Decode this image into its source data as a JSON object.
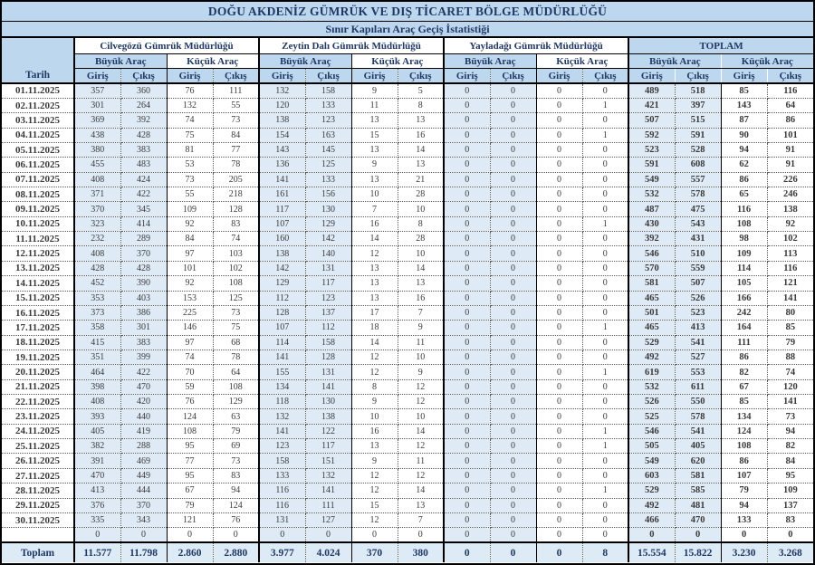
{
  "header": {
    "title": "DOĞU AKDENİZ GÜMRÜK VE DIŞ TİCARET BÖLGE MÜDÜRLÜĞÜ",
    "subtitle": "Sınır Kapıları Araç Geçiş İstatistiği"
  },
  "columns": {
    "date": "Tarih",
    "groups": [
      "Cilvegözü Gümrük Müdürlüğü",
      "Zeytin Dalı Gümrük Müdürlüğü",
      "Yayladağı Gümrük Müdürlüğü",
      "TOPLAM"
    ],
    "vehicle": [
      "Büyük Araç",
      "Küçük Araç"
    ],
    "direction": [
      "Giriş",
      "Çıkış"
    ]
  },
  "colors": {
    "header_bg": "#BDD7EE",
    "shade_bg": "#DEEAF6",
    "total_row_bg": "#DDEBF7",
    "navy_text": "#1F3864",
    "value_text": "#3a3a3a"
  },
  "rows": [
    {
      "date": "01.11.2025",
      "values": [
        357,
        360,
        76,
        111,
        132,
        158,
        9,
        5,
        0,
        0,
        0,
        0,
        489,
        518,
        85,
        116
      ]
    },
    {
      "date": "02.11.2025",
      "values": [
        301,
        264,
        132,
        55,
        120,
        133,
        11,
        8,
        0,
        0,
        0,
        1,
        421,
        397,
        143,
        64
      ]
    },
    {
      "date": "03.11.2025",
      "values": [
        369,
        392,
        74,
        73,
        138,
        123,
        13,
        13,
        0,
        0,
        0,
        0,
        507,
        515,
        87,
        86
      ]
    },
    {
      "date": "04.11.2025",
      "values": [
        438,
        428,
        75,
        84,
        154,
        163,
        15,
        16,
        0,
        0,
        0,
        1,
        592,
        591,
        90,
        101
      ]
    },
    {
      "date": "05.11.2025",
      "values": [
        380,
        383,
        81,
        77,
        143,
        145,
        13,
        14,
        0,
        0,
        0,
        0,
        523,
        528,
        94,
        91
      ]
    },
    {
      "date": "06.11.2025",
      "values": [
        455,
        483,
        53,
        78,
        136,
        125,
        9,
        13,
        0,
        0,
        0,
        0,
        591,
        608,
        62,
        91
      ]
    },
    {
      "date": "07.11.2025",
      "values": [
        408,
        424,
        73,
        205,
        141,
        133,
        13,
        21,
        0,
        0,
        0,
        0,
        549,
        557,
        86,
        226
      ]
    },
    {
      "date": "08.11.2025",
      "values": [
        371,
        422,
        55,
        218,
        161,
        156,
        10,
        28,
        0,
        0,
        0,
        0,
        532,
        578,
        65,
        246
      ]
    },
    {
      "date": "09.11.2025",
      "values": [
        370,
        345,
        109,
        128,
        117,
        130,
        7,
        10,
        0,
        0,
        0,
        0,
        487,
        475,
        116,
        138
      ]
    },
    {
      "date": "10.11.2025",
      "values": [
        323,
        414,
        92,
        83,
        107,
        129,
        16,
        8,
        0,
        0,
        0,
        1,
        430,
        543,
        108,
        92
      ]
    },
    {
      "date": "11.11.2025",
      "values": [
        232,
        289,
        84,
        74,
        160,
        142,
        14,
        28,
        0,
        0,
        0,
        0,
        392,
        431,
        98,
        102
      ]
    },
    {
      "date": "12.11.2025",
      "values": [
        408,
        370,
        97,
        103,
        138,
        140,
        12,
        10,
        0,
        0,
        0,
        0,
        546,
        510,
        109,
        113
      ]
    },
    {
      "date": "13.11.2025",
      "values": [
        428,
        428,
        101,
        102,
        142,
        131,
        13,
        14,
        0,
        0,
        0,
        0,
        570,
        559,
        114,
        116
      ]
    },
    {
      "date": "14.11.2025",
      "values": [
        452,
        390,
        92,
        108,
        129,
        117,
        13,
        13,
        0,
        0,
        0,
        0,
        581,
        507,
        105,
        121
      ]
    },
    {
      "date": "15.11.2025",
      "values": [
        353,
        403,
        153,
        125,
        112,
        123,
        13,
        16,
        0,
        0,
        0,
        0,
        465,
        526,
        166,
        141
      ]
    },
    {
      "date": "16.11.2025",
      "values": [
        373,
        386,
        225,
        73,
        128,
        137,
        17,
        7,
        0,
        0,
        0,
        0,
        501,
        523,
        242,
        80
      ]
    },
    {
      "date": "17.11.2025",
      "values": [
        358,
        301,
        146,
        75,
        107,
        112,
        18,
        9,
        0,
        0,
        0,
        1,
        465,
        413,
        164,
        85
      ]
    },
    {
      "date": "18.11.2025",
      "values": [
        415,
        383,
        97,
        68,
        114,
        158,
        14,
        11,
        0,
        0,
        0,
        0,
        529,
        541,
        111,
        79
      ]
    },
    {
      "date": "19.11.2025",
      "values": [
        351,
        399,
        74,
        78,
        141,
        128,
        12,
        10,
        0,
        0,
        0,
        0,
        492,
        527,
        86,
        88
      ]
    },
    {
      "date": "20.11.2025",
      "values": [
        464,
        422,
        70,
        64,
        155,
        131,
        12,
        9,
        0,
        0,
        0,
        1,
        619,
        553,
        82,
        74
      ]
    },
    {
      "date": "21.11.2025",
      "values": [
        398,
        470,
        59,
        108,
        134,
        141,
        8,
        12,
        0,
        0,
        0,
        0,
        532,
        611,
        67,
        120
      ]
    },
    {
      "date": "22.11.2025",
      "values": [
        408,
        420,
        76,
        129,
        118,
        130,
        9,
        12,
        0,
        0,
        0,
        0,
        526,
        550,
        85,
        141
      ]
    },
    {
      "date": "23.11.2025",
      "values": [
        393,
        440,
        124,
        63,
        132,
        138,
        10,
        10,
        0,
        0,
        0,
        0,
        525,
        578,
        134,
        73
      ]
    },
    {
      "date": "24.11.2025",
      "values": [
        405,
        419,
        108,
        79,
        141,
        122,
        16,
        14,
        0,
        0,
        0,
        1,
        546,
        541,
        124,
        94
      ]
    },
    {
      "date": "25.11.2025",
      "values": [
        382,
        288,
        95,
        69,
        123,
        117,
        13,
        12,
        0,
        0,
        0,
        1,
        505,
        405,
        108,
        82
      ]
    },
    {
      "date": "26.11.2025",
      "values": [
        391,
        469,
        77,
        73,
        158,
        151,
        9,
        11,
        0,
        0,
        0,
        0,
        549,
        620,
        86,
        84
      ]
    },
    {
      "date": "27.11.2025",
      "values": [
        470,
        449,
        95,
        83,
        133,
        132,
        12,
        12,
        0,
        0,
        0,
        0,
        603,
        581,
        107,
        95
      ]
    },
    {
      "date": "28.11.2025",
      "values": [
        413,
        444,
        67,
        94,
        116,
        141,
        12,
        14,
        0,
        0,
        0,
        1,
        529,
        585,
        79,
        109
      ]
    },
    {
      "date": "29.11.2025",
      "values": [
        376,
        370,
        79,
        124,
        116,
        111,
        15,
        13,
        0,
        0,
        0,
        0,
        492,
        481,
        94,
        137
      ]
    },
    {
      "date": "30.11.2025",
      "values": [
        335,
        343,
        121,
        76,
        131,
        127,
        12,
        7,
        0,
        0,
        0,
        0,
        466,
        470,
        133,
        83
      ]
    }
  ],
  "empty_row": {
    "date": "",
    "values": [
      0,
      0,
      0,
      0,
      0,
      0,
      0,
      0,
      0,
      0,
      0,
      0,
      0,
      0,
      0,
      0
    ]
  },
  "totals": {
    "label": "Toplam",
    "values": [
      "11.577",
      "11.798",
      "2.860",
      "2.880",
      "3.977",
      "4.024",
      "370",
      "380",
      "0",
      "0",
      "0",
      "8",
      "15.554",
      "15.822",
      "3.230",
      "3.268"
    ]
  }
}
